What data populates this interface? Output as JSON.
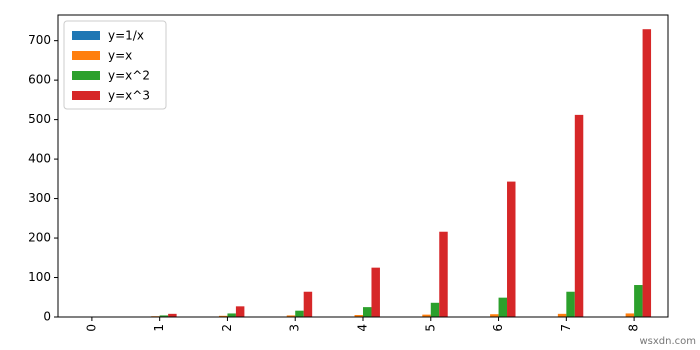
{
  "chart_data": {
    "type": "bar",
    "categories": [
      "0",
      "1",
      "2",
      "3",
      "4",
      "5",
      "6",
      "7",
      "8"
    ],
    "series": [
      {
        "name": "y=1/x",
        "color": "#1f77b4",
        "values": [
          1,
          0.5,
          0.333,
          0.25,
          0.2,
          0.167,
          0.143,
          0.125,
          0.111
        ]
      },
      {
        "name": "y=x",
        "color": "#ff7f0e",
        "values": [
          1,
          2,
          3,
          4,
          5,
          6,
          7,
          8,
          9
        ]
      },
      {
        "name": "y=x^2",
        "color": "#2ca02c",
        "values": [
          1,
          4,
          9,
          16,
          25,
          36,
          49,
          64,
          81
        ]
      },
      {
        "name": "y=x^3",
        "color": "#d62728",
        "values": [
          1,
          8,
          27,
          64,
          125,
          216,
          343,
          512,
          729
        ]
      }
    ],
    "ylim": [
      0,
      765
    ],
    "yticks": [
      0,
      100,
      200,
      300,
      400,
      500,
      600,
      700
    ],
    "legend": "upper left",
    "watermark": "wsxdn.com"
  }
}
